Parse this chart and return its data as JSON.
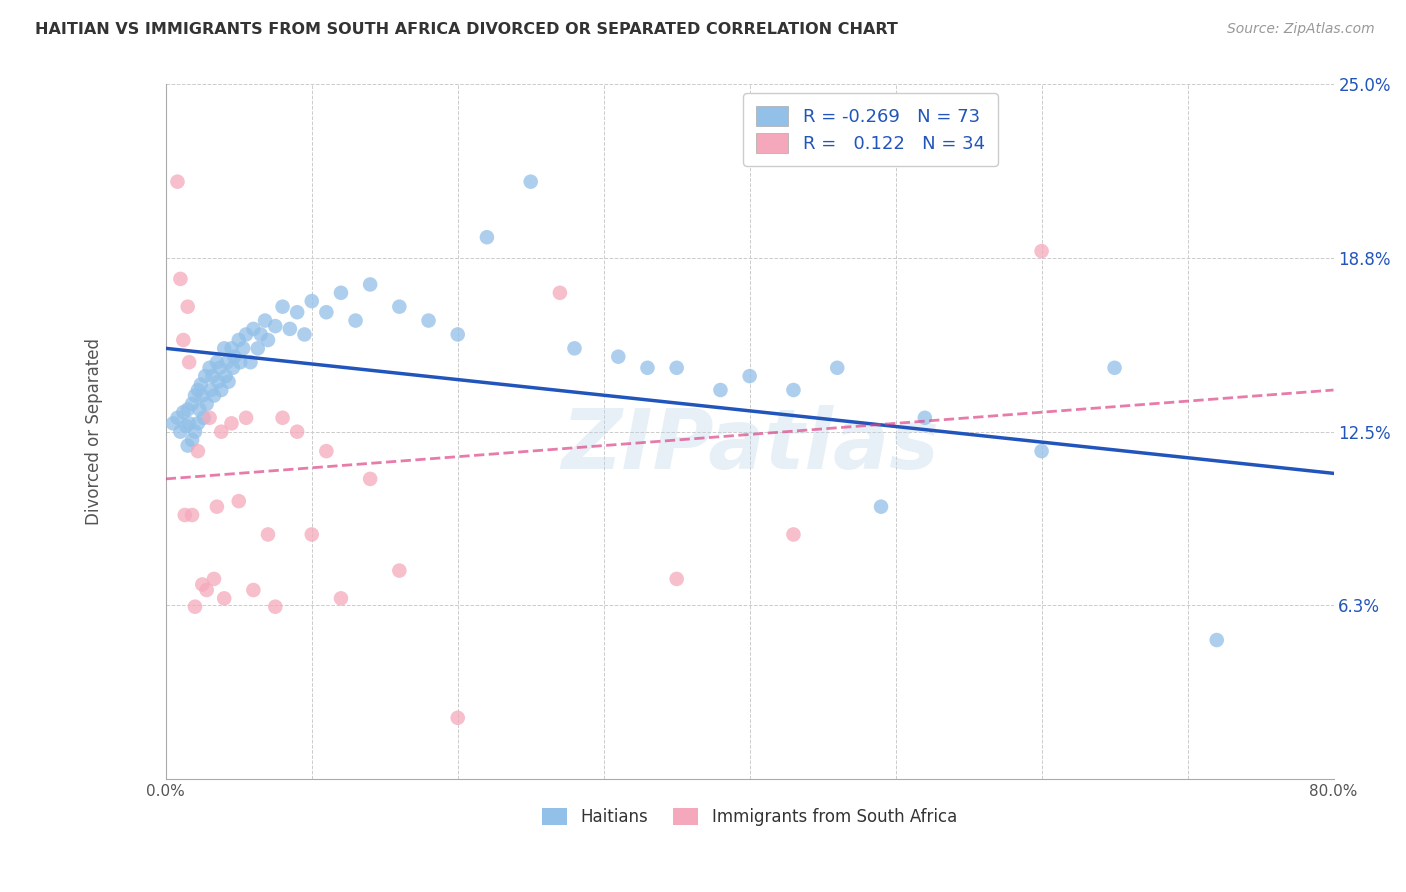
{
  "title": "HAITIAN VS IMMIGRANTS FROM SOUTH AFRICA DIVORCED OR SEPARATED CORRELATION CHART",
  "source": "Source: ZipAtlas.com",
  "ylabel": "Divorced or Separated",
  "watermark": "ZIPatlas",
  "xlim": [
    0.0,
    0.8
  ],
  "ylim": [
    0.0,
    0.25
  ],
  "xticks": [
    0.0,
    0.1,
    0.2,
    0.3,
    0.4,
    0.5,
    0.6,
    0.7,
    0.8
  ],
  "ytick_vals": [
    0.0,
    0.0625,
    0.125,
    0.1875,
    0.25
  ],
  "ytick_labels": [
    "",
    "6.3%",
    "12.5%",
    "18.8%",
    "25.0%"
  ],
  "blue_color": "#92C0E8",
  "pink_color": "#F5A8BC",
  "blue_line_color": "#2255BB",
  "pink_line_color": "#DD4488",
  "legend_R_blue": "-0.269",
  "legend_N_blue": "73",
  "legend_R_pink": "0.122",
  "legend_N_pink": "34",
  "blue_trend_x0": 0.0,
  "blue_trend_y0": 0.155,
  "blue_trend_x1": 0.8,
  "blue_trend_y1": 0.11,
  "pink_trend_x0": 0.0,
  "pink_trend_y0": 0.108,
  "pink_trend_x1": 0.8,
  "pink_trend_y1": 0.14,
  "blue_scatter_x": [
    0.005,
    0.008,
    0.01,
    0.012,
    0.014,
    0.015,
    0.015,
    0.016,
    0.018,
    0.018,
    0.02,
    0.02,
    0.022,
    0.022,
    0.023,
    0.024,
    0.025,
    0.026,
    0.027,
    0.028,
    0.03,
    0.031,
    0.032,
    0.033,
    0.035,
    0.036,
    0.037,
    0.038,
    0.04,
    0.041,
    0.042,
    0.043,
    0.045,
    0.046,
    0.047,
    0.05,
    0.051,
    0.053,
    0.055,
    0.058,
    0.06,
    0.063,
    0.065,
    0.068,
    0.07,
    0.075,
    0.08,
    0.085,
    0.09,
    0.095,
    0.1,
    0.11,
    0.12,
    0.13,
    0.14,
    0.16,
    0.18,
    0.2,
    0.22,
    0.25,
    0.28,
    0.31,
    0.33,
    0.35,
    0.38,
    0.4,
    0.43,
    0.46,
    0.49,
    0.52,
    0.6,
    0.65,
    0.72
  ],
  "blue_scatter_y": [
    0.128,
    0.13,
    0.125,
    0.132,
    0.127,
    0.133,
    0.12,
    0.128,
    0.135,
    0.122,
    0.138,
    0.125,
    0.14,
    0.128,
    0.133,
    0.142,
    0.138,
    0.13,
    0.145,
    0.135,
    0.148,
    0.14,
    0.145,
    0.138,
    0.15,
    0.143,
    0.148,
    0.14,
    0.155,
    0.145,
    0.15,
    0.143,
    0.155,
    0.148,
    0.152,
    0.158,
    0.15,
    0.155,
    0.16,
    0.15,
    0.162,
    0.155,
    0.16,
    0.165,
    0.158,
    0.163,
    0.17,
    0.162,
    0.168,
    0.16,
    0.172,
    0.168,
    0.175,
    0.165,
    0.178,
    0.17,
    0.165,
    0.16,
    0.195,
    0.215,
    0.155,
    0.152,
    0.148,
    0.148,
    0.14,
    0.145,
    0.14,
    0.148,
    0.098,
    0.13,
    0.118,
    0.148,
    0.05
  ],
  "pink_scatter_x": [
    0.008,
    0.01,
    0.012,
    0.013,
    0.015,
    0.016,
    0.018,
    0.02,
    0.022,
    0.025,
    0.028,
    0.03,
    0.033,
    0.035,
    0.038,
    0.04,
    0.045,
    0.05,
    0.055,
    0.06,
    0.07,
    0.075,
    0.08,
    0.09,
    0.1,
    0.11,
    0.12,
    0.14,
    0.16,
    0.2,
    0.27,
    0.35,
    0.43,
    0.6
  ],
  "pink_scatter_y": [
    0.215,
    0.18,
    0.158,
    0.095,
    0.17,
    0.15,
    0.095,
    0.062,
    0.118,
    0.07,
    0.068,
    0.13,
    0.072,
    0.098,
    0.125,
    0.065,
    0.128,
    0.1,
    0.13,
    0.068,
    0.088,
    0.062,
    0.13,
    0.125,
    0.088,
    0.118,
    0.065,
    0.108,
    0.075,
    0.022,
    0.175,
    0.072,
    0.088,
    0.19
  ],
  "background_color": "#ffffff",
  "grid_color": "#cccccc"
}
